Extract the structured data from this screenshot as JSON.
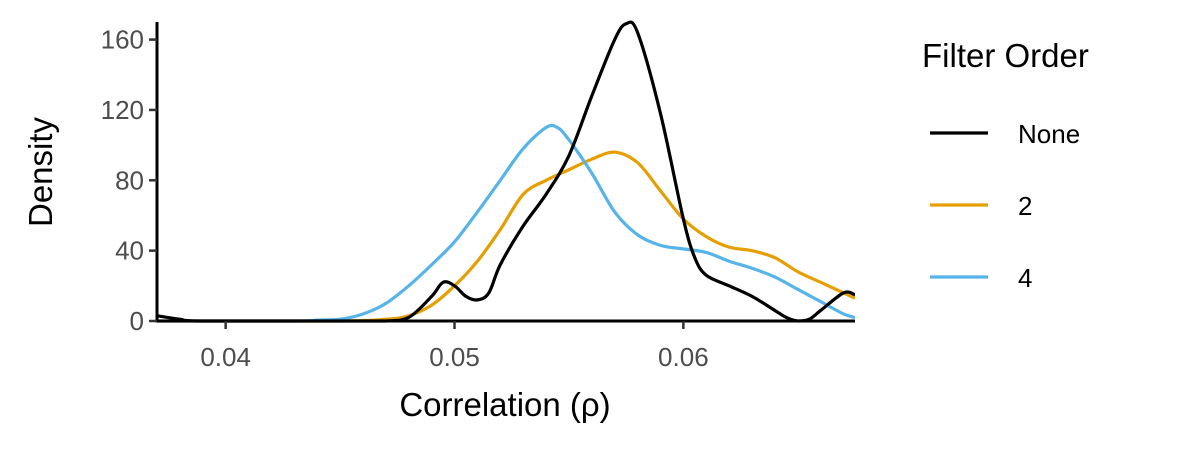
{
  "chart_data": {
    "type": "line",
    "title": "",
    "xlabel": "Correlation (ρ)",
    "ylabel": "Density",
    "xlim": [
      0.037,
      0.0675
    ],
    "ylim": [
      0,
      170
    ],
    "x_ticks": [
      0.04,
      0.05,
      0.06
    ],
    "x_tick_labels": [
      "0.04",
      "0.05",
      "0.06"
    ],
    "y_ticks": [
      0,
      40,
      80,
      120,
      160
    ],
    "y_tick_labels": [
      "0",
      "40",
      "80",
      "120",
      "160"
    ],
    "grid": false,
    "legend": {
      "title": "Filter Order",
      "position": "right"
    },
    "series": [
      {
        "name": "None",
        "color": "#000000",
        "points": [
          [
            0.037,
            3
          ],
          [
            0.038,
            1
          ],
          [
            0.039,
            0
          ],
          [
            0.045,
            0
          ],
          [
            0.047,
            0
          ],
          [
            0.048,
            2
          ],
          [
            0.049,
            14
          ],
          [
            0.0495,
            22
          ],
          [
            0.05,
            20
          ],
          [
            0.0505,
            14
          ],
          [
            0.051,
            12
          ],
          [
            0.0515,
            16
          ],
          [
            0.052,
            32
          ],
          [
            0.053,
            54
          ],
          [
            0.054,
            72
          ],
          [
            0.055,
            94
          ],
          [
            0.056,
            128
          ],
          [
            0.057,
            160
          ],
          [
            0.0575,
            169
          ],
          [
            0.058,
            164
          ],
          [
            0.059,
            118
          ],
          [
            0.06,
            58
          ],
          [
            0.0605,
            36
          ],
          [
            0.061,
            26
          ],
          [
            0.062,
            20
          ],
          [
            0.063,
            14
          ],
          [
            0.064,
            6
          ],
          [
            0.0645,
            2
          ],
          [
            0.065,
            0
          ],
          [
            0.0655,
            1
          ],
          [
            0.066,
            6
          ],
          [
            0.067,
            16
          ],
          [
            0.0675,
            15
          ]
        ]
      },
      {
        "name": "2",
        "color": "#E69F00",
        "points": [
          [
            0.037,
            0
          ],
          [
            0.045,
            0
          ],
          [
            0.047,
            1
          ],
          [
            0.048,
            3
          ],
          [
            0.049,
            9
          ],
          [
            0.05,
            20
          ],
          [
            0.051,
            34
          ],
          [
            0.052,
            52
          ],
          [
            0.053,
            72
          ],
          [
            0.054,
            80
          ],
          [
            0.055,
            86
          ],
          [
            0.056,
            92
          ],
          [
            0.057,
            96
          ],
          [
            0.058,
            90
          ],
          [
            0.059,
            74
          ],
          [
            0.06,
            58
          ],
          [
            0.061,
            48
          ],
          [
            0.062,
            42
          ],
          [
            0.063,
            40
          ],
          [
            0.064,
            36
          ],
          [
            0.065,
            28
          ],
          [
            0.066,
            22
          ],
          [
            0.067,
            16
          ],
          [
            0.0675,
            13
          ]
        ]
      },
      {
        "name": "4",
        "color": "#56B4E9",
        "points": [
          [
            0.037,
            0
          ],
          [
            0.043,
            0
          ],
          [
            0.044,
            0.5
          ],
          [
            0.045,
            1
          ],
          [
            0.046,
            4
          ],
          [
            0.047,
            10
          ],
          [
            0.048,
            20
          ],
          [
            0.049,
            32
          ],
          [
            0.05,
            45
          ],
          [
            0.051,
            62
          ],
          [
            0.052,
            80
          ],
          [
            0.053,
            98
          ],
          [
            0.054,
            110
          ],
          [
            0.0545,
            110
          ],
          [
            0.055,
            103
          ],
          [
            0.056,
            84
          ],
          [
            0.057,
            62
          ],
          [
            0.058,
            49
          ],
          [
            0.059,
            43
          ],
          [
            0.06,
            41
          ],
          [
            0.061,
            39
          ],
          [
            0.062,
            34
          ],
          [
            0.063,
            30
          ],
          [
            0.064,
            25
          ],
          [
            0.065,
            18
          ],
          [
            0.066,
            11
          ],
          [
            0.067,
            4
          ],
          [
            0.0675,
            2
          ]
        ]
      }
    ]
  }
}
